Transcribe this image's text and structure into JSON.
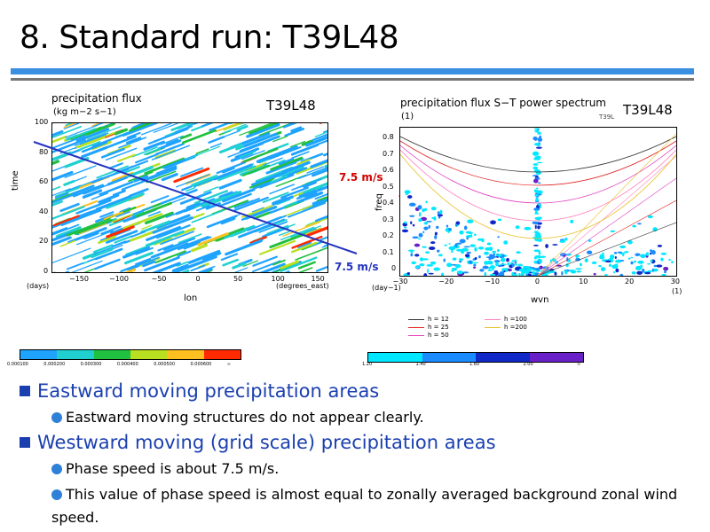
{
  "title": "8. Standard run: T39L48",
  "left_panel": {
    "tag": "T39L48",
    "plot_title": "precipitation  flux",
    "plot_units": "(kg m−2 s−1)",
    "ylabel": "time",
    "y_ticks": [
      "100",
      "80",
      "60",
      "40",
      "20",
      "0"
    ],
    "y_unit": "(days)",
    "x_ticks": [
      "−150",
      "−100",
      "−50",
      "0",
      "50",
      "100",
      "150"
    ],
    "x_unit": "(degrees_east)",
    "xlabel": "lon",
    "speed_label": "7.5 m/s",
    "colorbar_ticks": [
      "0.000100",
      "0.000200",
      "0.000300",
      "0.000400",
      "0.000500",
      "0.000600",
      "∞"
    ],
    "colorbar_colors": [
      "#1ea3ff",
      "#20d0d0",
      "#20c040",
      "#b8e020",
      "#ffc020",
      "#ff2a00"
    ]
  },
  "right_panel": {
    "tag": "T39L48",
    "small_tag": "T39L",
    "plot_title": "precipitation  flux  S−T  power  spectrum",
    "plot_units": "(1)",
    "ylabel": "freq",
    "y_ticks": [
      "0.8",
      "0.7",
      "0.6",
      "0.5",
      "0.4",
      "0.3",
      "0.2",
      "0.1",
      "0"
    ],
    "y_unit": "(day−1)",
    "x_ticks": [
      "−30",
      "−20",
      "−10",
      "0",
      "10",
      "20",
      "30"
    ],
    "x_unit": "(1)",
    "xlabel": "wvn",
    "speed_label": "7.5 m/s",
    "legend": [
      {
        "label": "h = 12",
        "color": "#333333"
      },
      {
        "label": "h = 25",
        "color": "#e02020"
      },
      {
        "label": "h = 50",
        "color": "#e040c0"
      },
      {
        "label": "h =100",
        "color": "#ff80c0"
      },
      {
        "label": "h =200",
        "color": "#e8c020"
      }
    ],
    "colorbar_ticks": [
      "1.20",
      "1.40",
      "1.60",
      "2.00",
      "∞"
    ],
    "colorbar_colors": [
      "#00e8ff",
      "#1a8cff",
      "#1028c8",
      "#6a20c8"
    ]
  },
  "bullets": [
    {
      "text": "Eastward moving precipitation areas",
      "subs": [
        "Eastward moving structures do not appear clearly."
      ]
    },
    {
      "text": "Westward moving (grid scale) precipitation areas",
      "subs": [
        "Phase speed is about 7.5 m/s.",
        "This value of phase speed is almost equal to zonally averaged background zonal wind speed."
      ]
    }
  ]
}
